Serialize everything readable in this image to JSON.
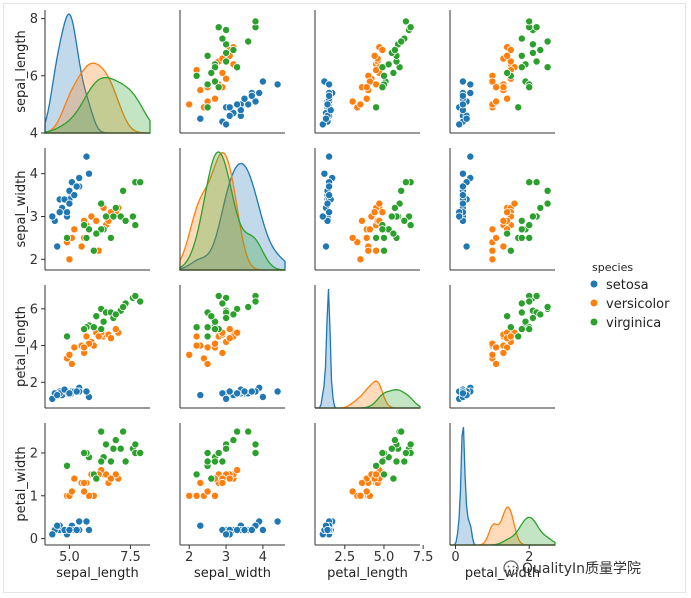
{
  "chart_data": {
    "type": "pairplot",
    "variables": [
      "sepal_length",
      "sepal_width",
      "petal_length",
      "petal_width"
    ],
    "hue": "species",
    "legend": {
      "title": "species",
      "placement": "right",
      "entries": [
        {
          "label": "setosa",
          "color": "#1f77b4"
        },
        {
          "label": "versicolor",
          "color": "#ff7f0e"
        },
        {
          "label": "virginica",
          "color": "#2ca02c"
        }
      ]
    },
    "axes": {
      "sepal_length": {
        "range": [
          4.0,
          8.3
        ],
        "ticks": [
          4,
          6,
          8
        ],
        "xticks": [
          5.0,
          7.5
        ],
        "xtick_labels": [
          "5.0",
          "7.5"
        ]
      },
      "sepal_width": {
        "range": [
          1.75,
          4.6
        ],
        "ticks": [
          2,
          3,
          4
        ],
        "xticks": [
          2,
          3,
          4
        ],
        "xtick_labels": [
          "2",
          "3",
          "4"
        ]
      },
      "petal_length": {
        "range": [
          0.6,
          7.3
        ],
        "ticks": [
          2,
          4,
          6
        ],
        "xticks": [
          2.5,
          5.0,
          7.5
        ],
        "xtick_labels": [
          "2.5",
          "5.0",
          "7.5"
        ]
      },
      "petal_width": {
        "range": [
          -0.15,
          2.7
        ],
        "ticks": [
          0,
          1,
          2
        ],
        "xticks": [
          0,
          2
        ],
        "xtick_labels": [
          "0",
          "2"
        ]
      }
    },
    "series": [
      {
        "name": "setosa",
        "points": [
          [
            5.1,
            3.5,
            1.4,
            0.2
          ],
          [
            4.9,
            3.0,
            1.4,
            0.2
          ],
          [
            4.7,
            3.2,
            1.3,
            0.2
          ],
          [
            4.6,
            3.1,
            1.5,
            0.2
          ],
          [
            5.0,
            3.6,
            1.4,
            0.2
          ],
          [
            5.4,
            3.9,
            1.7,
            0.4
          ],
          [
            4.6,
            3.4,
            1.4,
            0.3
          ],
          [
            5.0,
            3.4,
            1.5,
            0.2
          ],
          [
            4.4,
            2.9,
            1.4,
            0.2
          ],
          [
            4.9,
            3.1,
            1.5,
            0.1
          ],
          [
            5.4,
            3.7,
            1.5,
            0.2
          ],
          [
            4.8,
            3.4,
            1.6,
            0.2
          ],
          [
            4.3,
            3.0,
            1.1,
            0.1
          ],
          [
            5.8,
            4.0,
            1.2,
            0.2
          ],
          [
            5.7,
            4.4,
            1.5,
            0.4
          ],
          [
            5.1,
            3.8,
            1.5,
            0.3
          ],
          [
            5.2,
            3.5,
            1.5,
            0.2
          ],
          [
            5.3,
            3.7,
            1.5,
            0.2
          ],
          [
            4.5,
            2.3,
            1.3,
            0.3
          ],
          [
            5.0,
            3.3,
            1.4,
            0.2
          ]
        ]
      },
      {
        "name": "versicolor",
        "points": [
          [
            7.0,
            3.2,
            4.7,
            1.4
          ],
          [
            6.4,
            3.2,
            4.5,
            1.5
          ],
          [
            6.9,
            3.1,
            4.9,
            1.5
          ],
          [
            5.5,
            2.3,
            4.0,
            1.3
          ],
          [
            6.5,
            2.8,
            4.6,
            1.5
          ],
          [
            5.7,
            2.8,
            4.5,
            1.3
          ],
          [
            6.3,
            3.3,
            4.7,
            1.6
          ],
          [
            4.9,
            2.4,
            3.3,
            1.0
          ],
          [
            6.6,
            2.9,
            4.6,
            1.3
          ],
          [
            5.2,
            2.7,
            3.9,
            1.4
          ],
          [
            5.0,
            2.0,
            3.5,
            1.0
          ],
          [
            5.9,
            3.0,
            4.2,
            1.5
          ],
          [
            6.0,
            2.2,
            4.0,
            1.0
          ],
          [
            6.1,
            2.9,
            4.7,
            1.4
          ],
          [
            5.6,
            2.9,
            3.6,
            1.3
          ],
          [
            6.7,
            3.1,
            4.4,
            1.4
          ],
          [
            5.8,
            2.7,
            4.1,
            1.0
          ],
          [
            6.2,
            2.2,
            4.5,
            1.5
          ],
          [
            5.6,
            2.5,
            3.9,
            1.1
          ],
          [
            5.1,
            2.5,
            3.0,
            1.1
          ]
        ]
      },
      {
        "name": "virginica",
        "points": [
          [
            6.3,
            3.3,
            6.0,
            2.5
          ],
          [
            5.8,
            2.7,
            5.1,
            1.9
          ],
          [
            7.1,
            3.0,
            5.9,
            2.1
          ],
          [
            6.5,
            3.0,
            5.8,
            2.2
          ],
          [
            7.6,
            3.0,
            6.6,
            2.1
          ],
          [
            4.9,
            2.5,
            4.5,
            1.7
          ],
          [
            7.3,
            2.9,
            6.3,
            1.8
          ],
          [
            6.7,
            2.5,
            5.8,
            1.8
          ],
          [
            7.2,
            3.6,
            6.1,
            2.5
          ],
          [
            6.4,
            2.7,
            5.3,
            1.9
          ],
          [
            6.8,
            3.0,
            5.5,
            2.1
          ],
          [
            5.7,
            2.5,
            5.0,
            2.0
          ],
          [
            7.7,
            3.8,
            6.7,
            2.2
          ],
          [
            6.0,
            2.2,
            5.0,
            1.5
          ],
          [
            6.9,
            3.2,
            5.7,
            2.3
          ],
          [
            5.6,
            2.8,
            4.9,
            2.0
          ],
          [
            7.7,
            2.8,
            6.7,
            2.0
          ],
          [
            6.3,
            2.7,
            4.9,
            1.8
          ],
          [
            7.9,
            3.8,
            6.4,
            2.0
          ],
          [
            6.1,
            2.6,
            5.6,
            1.4
          ]
        ]
      }
    ],
    "diagonal": "kde"
  },
  "watermark": "QualityIn质量学院"
}
